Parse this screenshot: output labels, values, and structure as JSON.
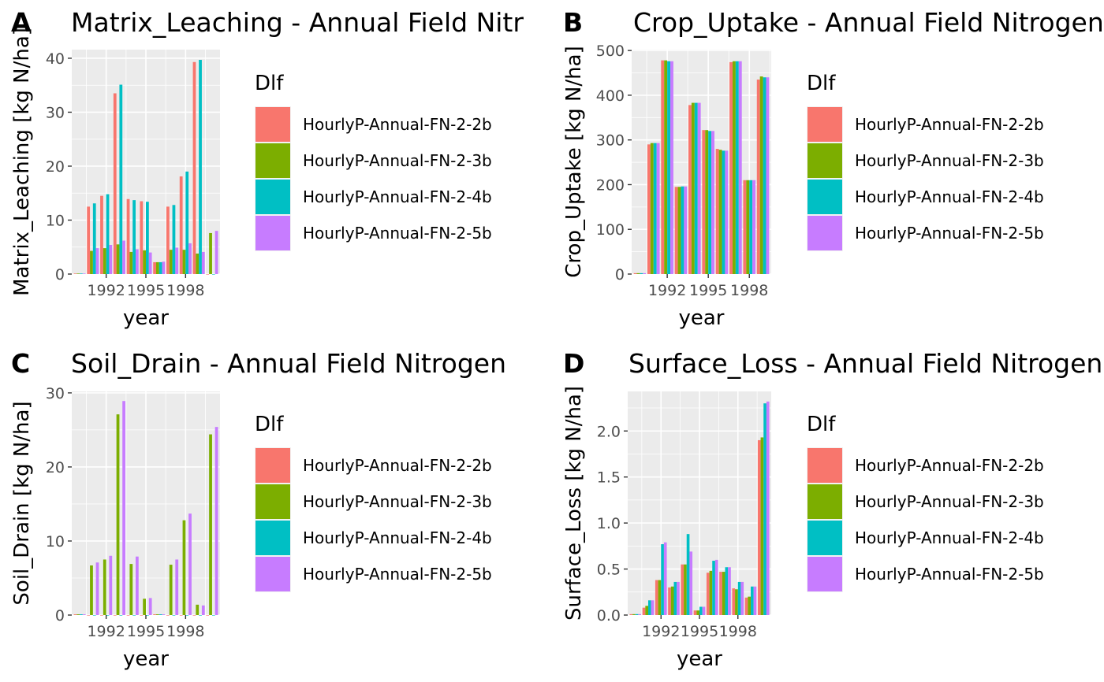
{
  "legend_title": "Dlf",
  "series_colors": [
    "#F8766D",
    "#7CAE00",
    "#00BFC4",
    "#C77CFF"
  ],
  "chart_data": [
    {
      "tag": "A",
      "type": "bar",
      "title": "Matrix_Leaching - Annual Field Nitr",
      "xlabel": "year",
      "ylabel": "Matrix_Leaching [kg N/ha]",
      "x": [
        1990,
        1991,
        1992,
        1993,
        1994,
        1995,
        1996,
        1997,
        1998,
        1999,
        2000
      ],
      "xticks": [
        1992,
        1995,
        1998
      ],
      "yticks": [
        0,
        10,
        20,
        30,
        40
      ],
      "ylim": [
        0,
        41.6
      ],
      "series": [
        {
          "name": "HourlyP-Annual-FN-2-2b",
          "values": [
            0.1,
            12.5,
            14.5,
            33.5,
            13.9,
            13.5,
            2.2,
            12.5,
            18.1,
            39.3,
            0
          ]
        },
        {
          "name": "HourlyP-Annual-FN-2-3b",
          "values": [
            0.1,
            4.3,
            4.8,
            5.5,
            4.1,
            4.4,
            2.2,
            4.5,
            4.5,
            3.8,
            7.6
          ]
        },
        {
          "name": "HourlyP-Annual-FN-2-4b",
          "values": [
            0.1,
            13.1,
            14.8,
            35.1,
            13.7,
            13.4,
            2.2,
            12.8,
            19.0,
            39.7,
            0
          ]
        },
        {
          "name": "HourlyP-Annual-FN-2-5b",
          "values": [
            0.1,
            4.8,
            5.4,
            6.2,
            4.6,
            4.0,
            2.3,
            4.9,
            5.7,
            4.1,
            8.0
          ]
        }
      ]
    },
    {
      "tag": "B",
      "type": "bar",
      "title": "Crop_Uptake - Annual Field Nitrogen",
      "xlabel": "year",
      "ylabel": "Crop_Uptake [kg N/ha]",
      "x": [
        1990,
        1991,
        1992,
        1993,
        1994,
        1995,
        1996,
        1997,
        1998,
        1999
      ],
      "xticks": [
        1992,
        1995,
        1998
      ],
      "yticks": [
        0,
        100,
        200,
        300,
        400,
        500
      ],
      "ylim": [
        0,
        502
      ],
      "series": [
        {
          "name": "HourlyP-Annual-FN-2-2b",
          "values": [
            2,
            290,
            478,
            195,
            378,
            322,
            280,
            474,
            210,
            435
          ]
        },
        {
          "name": "HourlyP-Annual-FN-2-3b",
          "values": [
            2,
            293,
            478,
            195,
            383,
            322,
            278,
            476,
            210,
            442
          ]
        },
        {
          "name": "HourlyP-Annual-FN-2-4b",
          "values": [
            2,
            293,
            476,
            196,
            383,
            320,
            276,
            476,
            210,
            440
          ]
        },
        {
          "name": "HourlyP-Annual-FN-2-5b",
          "values": [
            2,
            293,
            476,
            196,
            383,
            320,
            276,
            476,
            210,
            440
          ]
        }
      ]
    },
    {
      "tag": "C",
      "type": "bar",
      "title": "Soil_Drain - Annual Field Nitrogen",
      "xlabel": "year",
      "ylabel": "Soil_Drain [kg N/ha]",
      "x": [
        1990,
        1991,
        1992,
        1993,
        1994,
        1995,
        1996,
        1997,
        1998,
        1999,
        2000
      ],
      "xticks": [
        1992,
        1995,
        1998
      ],
      "yticks": [
        0,
        10,
        20,
        30
      ],
      "ylim": [
        0,
        30.2
      ],
      "series": [
        {
          "name": "HourlyP-Annual-FN-2-2b",
          "values": [
            0.1,
            0,
            0,
            0,
            0,
            0,
            0.1,
            0,
            0,
            0,
            0
          ]
        },
        {
          "name": "HourlyP-Annual-FN-2-3b",
          "values": [
            0.1,
            6.7,
            7.5,
            27.1,
            6.9,
            2.2,
            0.1,
            6.8,
            12.8,
            1.4,
            24.4
          ]
        },
        {
          "name": "HourlyP-Annual-FN-2-4b",
          "values": [
            0.1,
            0,
            0,
            0,
            0,
            0,
            0.1,
            0,
            0,
            0,
            0
          ]
        },
        {
          "name": "HourlyP-Annual-FN-2-5b",
          "values": [
            0.1,
            7.1,
            8.0,
            28.9,
            7.9,
            2.3,
            0.1,
            7.5,
            13.7,
            1.3,
            25.4
          ]
        }
      ]
    },
    {
      "tag": "D",
      "type": "bar",
      "title": "Surface_Loss - Annual Field Nitrogen",
      "xlabel": "year",
      "ylabel": "Surface_Loss [kg N/ha]",
      "x": [
        1990,
        1991,
        1992,
        1993,
        1994,
        1995,
        1996,
        1997,
        1998,
        1999,
        2000
      ],
      "xticks": [
        1992,
        1995,
        1998
      ],
      "yticks": [
        0.0,
        0.5,
        1.0,
        1.5,
        2.0
      ],
      "ytick_labels": [
        "0.0",
        "0.5",
        "1.0",
        "1.5",
        "2.0"
      ],
      "ylim": [
        0,
        2.43
      ],
      "series": [
        {
          "name": "HourlyP-Annual-FN-2-2b",
          "values": [
            0.01,
            0.08,
            0.38,
            0.3,
            0.55,
            0.05,
            0.46,
            0.47,
            0.29,
            0.19,
            1.9
          ]
        },
        {
          "name": "HourlyP-Annual-FN-2-3b",
          "values": [
            0.01,
            0.1,
            0.38,
            0.31,
            0.55,
            0.05,
            0.48,
            0.47,
            0.28,
            0.2,
            1.93
          ]
        },
        {
          "name": "HourlyP-Annual-FN-2-4b",
          "values": [
            0.01,
            0.16,
            0.77,
            0.36,
            0.88,
            0.09,
            0.59,
            0.52,
            0.36,
            0.31,
            2.3
          ]
        },
        {
          "name": "HourlyP-Annual-FN-2-5b",
          "values": [
            0.01,
            0.16,
            0.79,
            0.36,
            0.69,
            0.09,
            0.6,
            0.52,
            0.36,
            0.31,
            2.32
          ]
        }
      ]
    }
  ]
}
